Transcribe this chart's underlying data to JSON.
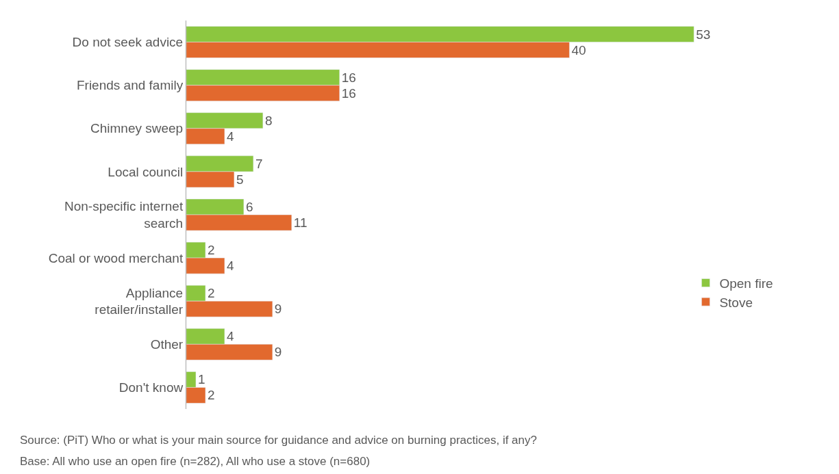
{
  "chart_data": {
    "type": "bar",
    "orientation": "horizontal",
    "categories": [
      "Do not seek advice",
      "Friends and family",
      "Chimney sweep",
      "Local council",
      "Non-specific internet search",
      "Coal or wood merchant",
      "Appliance retailer/installer",
      "Other",
      "Don't know"
    ],
    "series": [
      {
        "name": "Open fire",
        "color": "#8cc63f",
        "values": [
          53,
          16,
          8,
          7,
          6,
          2,
          2,
          4,
          1
        ]
      },
      {
        "name": "Stove",
        "color": "#e2692e",
        "values": [
          40,
          16,
          4,
          5,
          11,
          4,
          9,
          9,
          2
        ]
      }
    ],
    "data_labels": true,
    "tick_labels": "y",
    "legend": "right",
    "annotations": [
      "Source: (PiT) Who or what is your main source for guidance and advice on burning practices, if any?",
      "Base: All who use an open fire (n=282), All who use a stove (n=680)"
    ]
  }
}
